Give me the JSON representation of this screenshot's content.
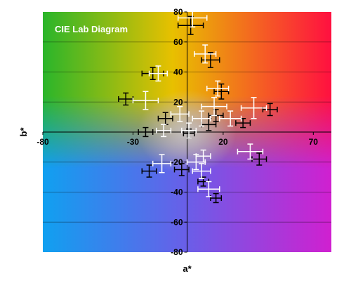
{
  "chart_data": {
    "type": "scatter",
    "title": "CIE Lab Diagram",
    "xlabel": "a*",
    "ylabel": "b*",
    "xlim": [
      -80,
      80
    ],
    "ylim": [
      -80,
      80
    ],
    "x_ticks": [
      -80,
      -30,
      20,
      70
    ],
    "y_ticks": [
      -80,
      -60,
      -40,
      -20,
      0,
      20,
      40,
      60,
      80
    ],
    "grid": "horizontal",
    "error_bars": true,
    "series": [
      {
        "color": "#000000",
        "points": [
          {
            "x": 2,
            "y": 71,
            "xerr": 7,
            "yerr": 6
          },
          {
            "x": 13,
            "y": 48,
            "xerr": 5,
            "yerr": 5
          },
          {
            "x": -19,
            "y": 39,
            "xerr": 6,
            "yerr": 4
          },
          {
            "x": 19,
            "y": 27,
            "xerr": 4,
            "yerr": 5
          },
          {
            "x": -34,
            "y": 22,
            "xerr": 4,
            "yerr": 4
          },
          {
            "x": 46,
            "y": 15,
            "xerr": 4,
            "yerr": 4
          },
          {
            "x": 16,
            "y": 11,
            "xerr": 4,
            "yerr": 4
          },
          {
            "x": -12,
            "y": 9,
            "xerr": 4,
            "yerr": 4
          },
          {
            "x": 31,
            "y": 6,
            "xerr": 4,
            "yerr": 3
          },
          {
            "x": 12,
            "y": 5,
            "xerr": 4,
            "yerr": 4
          },
          {
            "x": -23,
            "y": 0,
            "xerr": 4,
            "yerr": 3
          },
          {
            "x": 1,
            "y": -1,
            "xerr": 3,
            "yerr": 3
          },
          {
            "x": 40,
            "y": -18,
            "xerr": 4,
            "yerr": 4
          },
          {
            "x": -21,
            "y": -26,
            "xerr": 4,
            "yerr": 4
          },
          {
            "x": -3,
            "y": -25,
            "xerr": 4,
            "yerr": 4
          },
          {
            "x": 9,
            "y": -33,
            "xerr": 3,
            "yerr": 3
          },
          {
            "x": 16,
            "y": -44,
            "xerr": 3,
            "yerr": 3
          }
        ]
      },
      {
        "color": "#ffffff",
        "points": [
          {
            "x": 3,
            "y": 76,
            "xerr": 8,
            "yerr": 6
          },
          {
            "x": 10,
            "y": 52,
            "xerr": 6,
            "yerr": 6
          },
          {
            "x": -16,
            "y": 39,
            "xerr": 5,
            "yerr": 5
          },
          {
            "x": 17,
            "y": 29,
            "xerr": 6,
            "yerr": 5
          },
          {
            "x": -23,
            "y": 21,
            "xerr": 7,
            "yerr": 6
          },
          {
            "x": 37,
            "y": 16,
            "xerr": 7,
            "yerr": 7
          },
          {
            "x": 15,
            "y": 17,
            "xerr": 7,
            "yerr": 6
          },
          {
            "x": -4,
            "y": 12,
            "xerr": 5,
            "yerr": 5
          },
          {
            "x": 24,
            "y": 9,
            "xerr": 6,
            "yerr": 5
          },
          {
            "x": 8,
            "y": 9,
            "xerr": 5,
            "yerr": 5
          },
          {
            "x": -13,
            "y": 1,
            "xerr": 4,
            "yerr": 4
          },
          {
            "x": 1,
            "y": 1,
            "xerr": 4,
            "yerr": 5
          },
          {
            "x": 35,
            "y": -13,
            "xerr": 7,
            "yerr": 5
          },
          {
            "x": -14,
            "y": -21,
            "xerr": 5,
            "yerr": 6
          },
          {
            "x": 5,
            "y": -20,
            "xerr": 5,
            "yerr": 5
          },
          {
            "x": 9,
            "y": -16,
            "xerr": 4,
            "yerr": 4
          },
          {
            "x": 8,
            "y": -26,
            "xerr": 5,
            "yerr": 5
          },
          {
            "x": 12,
            "y": -38,
            "xerr": 6,
            "yerr": 5
          }
        ]
      }
    ]
  },
  "colors": {
    "green": "#2ab52a",
    "red": "#ff1040",
    "blue": "#10a0f0",
    "magenta": "#d020d0",
    "yellow": "#e8c000"
  }
}
